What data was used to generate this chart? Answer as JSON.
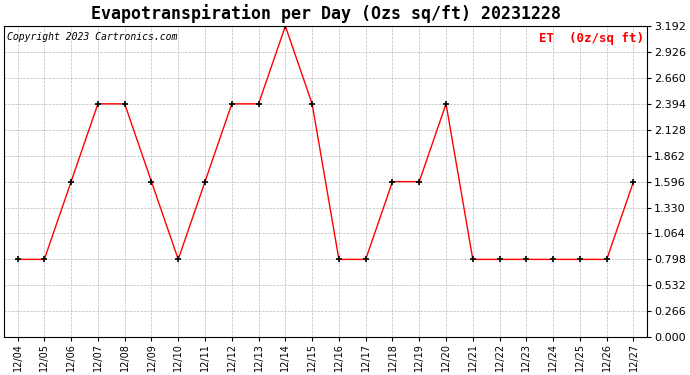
{
  "title": "Evapotranspiration per Day (Ozs sq/ft) 20231228",
  "legend_label": "ET  (0z/sq ft)",
  "copyright_text": "Copyright 2023 Cartronics.com",
  "dates": [
    "12/04",
    "12/05",
    "12/06",
    "12/07",
    "12/08",
    "12/09",
    "12/10",
    "12/11",
    "12/12",
    "12/13",
    "12/14",
    "12/15",
    "12/16",
    "12/17",
    "12/18",
    "12/19",
    "12/20",
    "12/21",
    "12/22",
    "12/23",
    "12/24",
    "12/25",
    "12/26",
    "12/27"
  ],
  "values": [
    0.798,
    0.798,
    1.596,
    2.394,
    2.394,
    1.596,
    0.798,
    1.596,
    2.394,
    2.394,
    3.192,
    2.394,
    0.798,
    0.798,
    1.596,
    1.596,
    2.394,
    0.798,
    0.798,
    0.798,
    0.798,
    0.798,
    0.798,
    1.596
  ],
  "line_color": "red",
  "marker_color": "black",
  "marker_style": "+",
  "ylim": [
    0.0,
    3.192
  ],
  "yticks": [
    0.0,
    0.266,
    0.532,
    0.798,
    1.064,
    1.33,
    1.596,
    1.862,
    2.128,
    2.394,
    2.66,
    2.926,
    3.192
  ],
  "background_color": "white",
  "grid_color": "#bbbbbb",
  "title_fontsize": 12,
  "legend_color": "red",
  "legend_fontsize": 9,
  "copyright_color": "black",
  "copyright_fontsize": 7,
  "tick_fontsize": 8,
  "xtick_fontsize": 7
}
